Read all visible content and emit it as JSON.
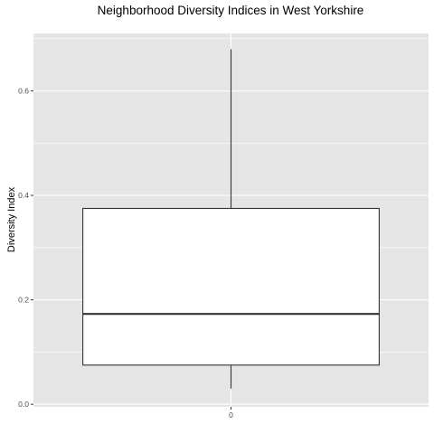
{
  "chart_data": {
    "type": "box",
    "title": "Neighborhood Diversity Indices in West Yorkshire",
    "xlabel": "",
    "ylabel": "Diversity Index",
    "categories": [
      "0"
    ],
    "boxes": [
      {
        "category": "0",
        "whisker_low": 0.03,
        "q1": 0.075,
        "median": 0.173,
        "q3": 0.375,
        "whisker_high": 0.68
      }
    ],
    "yticks": [
      0.0,
      0.2,
      0.4,
      0.6
    ],
    "ytick_labels": [
      "0.0",
      "0.2",
      "0.4",
      "0.6"
    ],
    "ylim": [
      -0.005,
      0.71
    ],
    "grid": true,
    "colors": {
      "panel": "#e5e5e5",
      "grid_major": "#ffffff",
      "box_fill": "#ffffff",
      "box_stroke": "#333333",
      "median": "#333333"
    }
  }
}
